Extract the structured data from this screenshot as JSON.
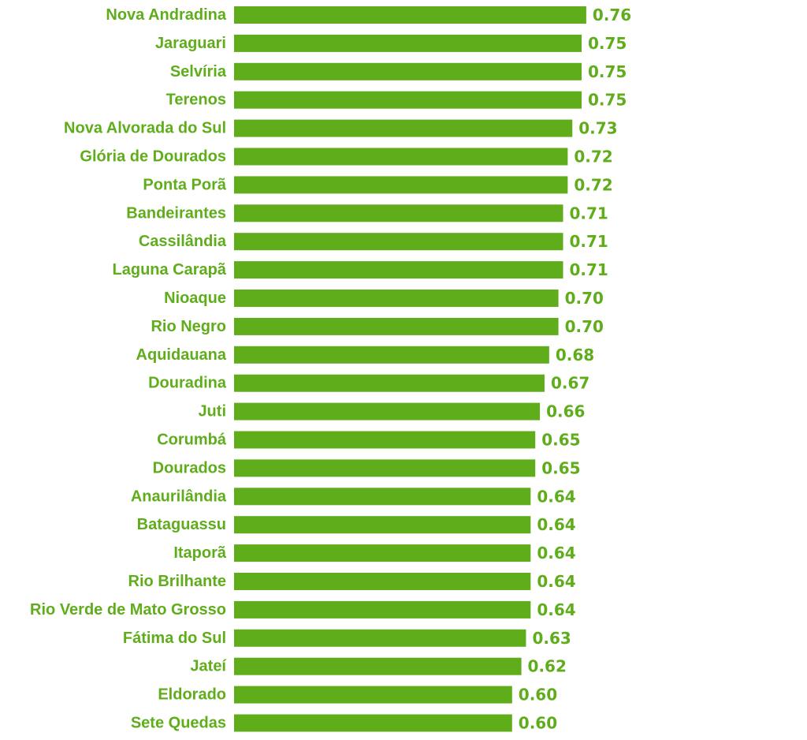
{
  "colors": {
    "bar": "#5fad1b",
    "label": "#5fad1b"
  },
  "chart_data": {
    "type": "bar",
    "orientation": "horizontal",
    "categories": [
      "Nova Andradina",
      "Jaraguari",
      "Selvíria",
      "Terenos",
      "Nova Alvorada do Sul",
      "Glória de Dourados",
      "Ponta Porã",
      "Bandeirantes",
      "Cassilândia",
      "Laguna Carapã",
      "Nioaque",
      "Rio Negro",
      "Aquidauana",
      "Douradina",
      "Juti",
      "Corumbá",
      "Dourados",
      "Anaurilândia",
      "Bataguassu",
      "Itaporã",
      "Rio Brilhante",
      "Rio Verde de Mato Grosso",
      "Fátima do Sul",
      "Jateí",
      "Eldorado",
      "Sete Quedas"
    ],
    "values": [
      0.76,
      0.75,
      0.75,
      0.75,
      0.73,
      0.72,
      0.72,
      0.71,
      0.71,
      0.71,
      0.7,
      0.7,
      0.68,
      0.67,
      0.66,
      0.65,
      0.65,
      0.64,
      0.64,
      0.64,
      0.64,
      0.64,
      0.63,
      0.62,
      0.6,
      0.6
    ],
    "value_labels": [
      "0.76",
      "0.75",
      "0.75",
      "0.75",
      "0.73",
      "0.72",
      "0.72",
      "0.71",
      "0.71",
      "0.71",
      "0.70",
      "0.70",
      "0.68",
      "0.67",
      "0.66",
      "0.65",
      "0.65",
      "0.64",
      "0.64",
      "0.64",
      "0.64",
      "0.64",
      "0.63",
      "0.62",
      "0.60",
      "0.60"
    ],
    "grid": false,
    "legend": "none"
  }
}
